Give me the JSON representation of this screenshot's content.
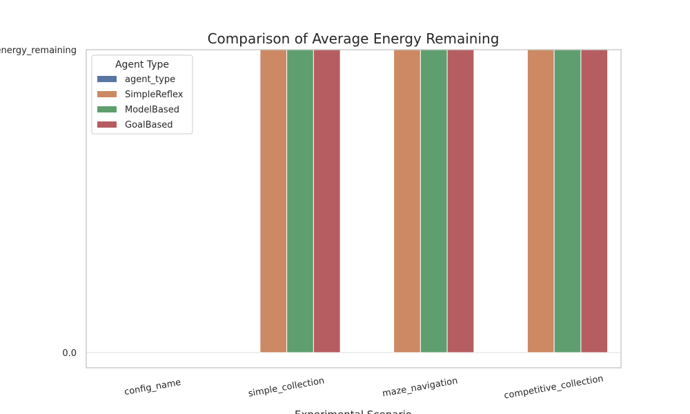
{
  "chart_data": {
    "type": "bar",
    "title": "Comparison of Average Energy Remaining",
    "x_label": "Experimental Scenario",
    "categories": [
      "config_name",
      "simple_collection",
      "maze_navigation",
      "competitive_collection"
    ],
    "series": [
      {
        "name": "agent_type",
        "color": "#5975a4",
        "values": [
          null,
          null,
          null,
          null
        ]
      },
      {
        "name": "SimpleReflex",
        "color": "#cc8963",
        "values": [
          null,
          1,
          1,
          1
        ]
      },
      {
        "name": "ModelBased",
        "color": "#5f9e6e",
        "values": [
          null,
          1,
          1,
          1
        ]
      },
      {
        "name": "GoalBased",
        "color": "#b55d60",
        "values": [
          null,
          1,
          1,
          1
        ]
      }
    ],
    "ylim": [
      -0.05,
      1
    ],
    "yticks": [
      {
        "value": 0,
        "label": "0.0"
      },
      {
        "value": 1,
        "label": "avg_energy_remaining"
      }
    ],
    "grid": true,
    "legend_title": "Agent Type",
    "legend_position": "upper-left"
  }
}
